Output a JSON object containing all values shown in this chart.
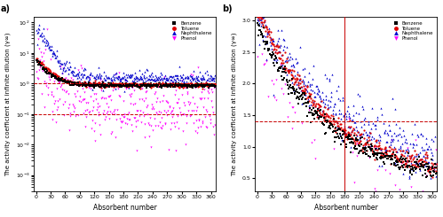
{
  "panel_a": {
    "title": "a)",
    "xlabel": "Absorbent number",
    "ylabel": "The activity coefficient at infinite dilution (γ∞)",
    "xlim": [
      -5,
      370
    ],
    "ylim": [
      0.0003,
      150.0
    ],
    "xticks": [
      0,
      30,
      60,
      90,
      120,
      150,
      180,
      210,
      240,
      270,
      300,
      330,
      360
    ],
    "hlines": [
      1.0,
      0.1
    ],
    "hline_color": "#c80000",
    "n_absorbents": 369
  },
  "panel_b": {
    "title": "b)",
    "xlabel": "Absorbent number",
    "ylabel": "The activity coefficient at infinite dilution (γ∞)",
    "xlim": [
      -5,
      370
    ],
    "ylim": [
      0.3,
      3.05
    ],
    "yticks": [
      0.5,
      1.0,
      1.5,
      2.0,
      2.5,
      3.0
    ],
    "xticks": [
      0,
      30,
      60,
      90,
      120,
      150,
      180,
      210,
      240,
      270,
      300,
      330,
      360
    ],
    "hline": 1.4,
    "hline_color": "#c80000",
    "vline": 180,
    "vline_color": "#c80000",
    "n_absorbents": 369
  },
  "series": {
    "Benzene": {
      "color": "#000000",
      "marker": "s"
    },
    "Toluene": {
      "color": "#dd0000",
      "marker": "o"
    },
    "Naphthalene": {
      "color": "#0000cc",
      "marker": "^"
    },
    "Phenol": {
      "color": "#ff00ff",
      "marker": "v"
    }
  },
  "legend_labels": [
    "Benzene",
    "Toluene",
    "Naphthalene",
    "Phenol"
  ],
  "legend_colors": [
    "#000000",
    "#dd0000",
    "#0000cc",
    "#ff00ff"
  ],
  "legend_markers": [
    "s",
    "o",
    "^",
    "v"
  ]
}
